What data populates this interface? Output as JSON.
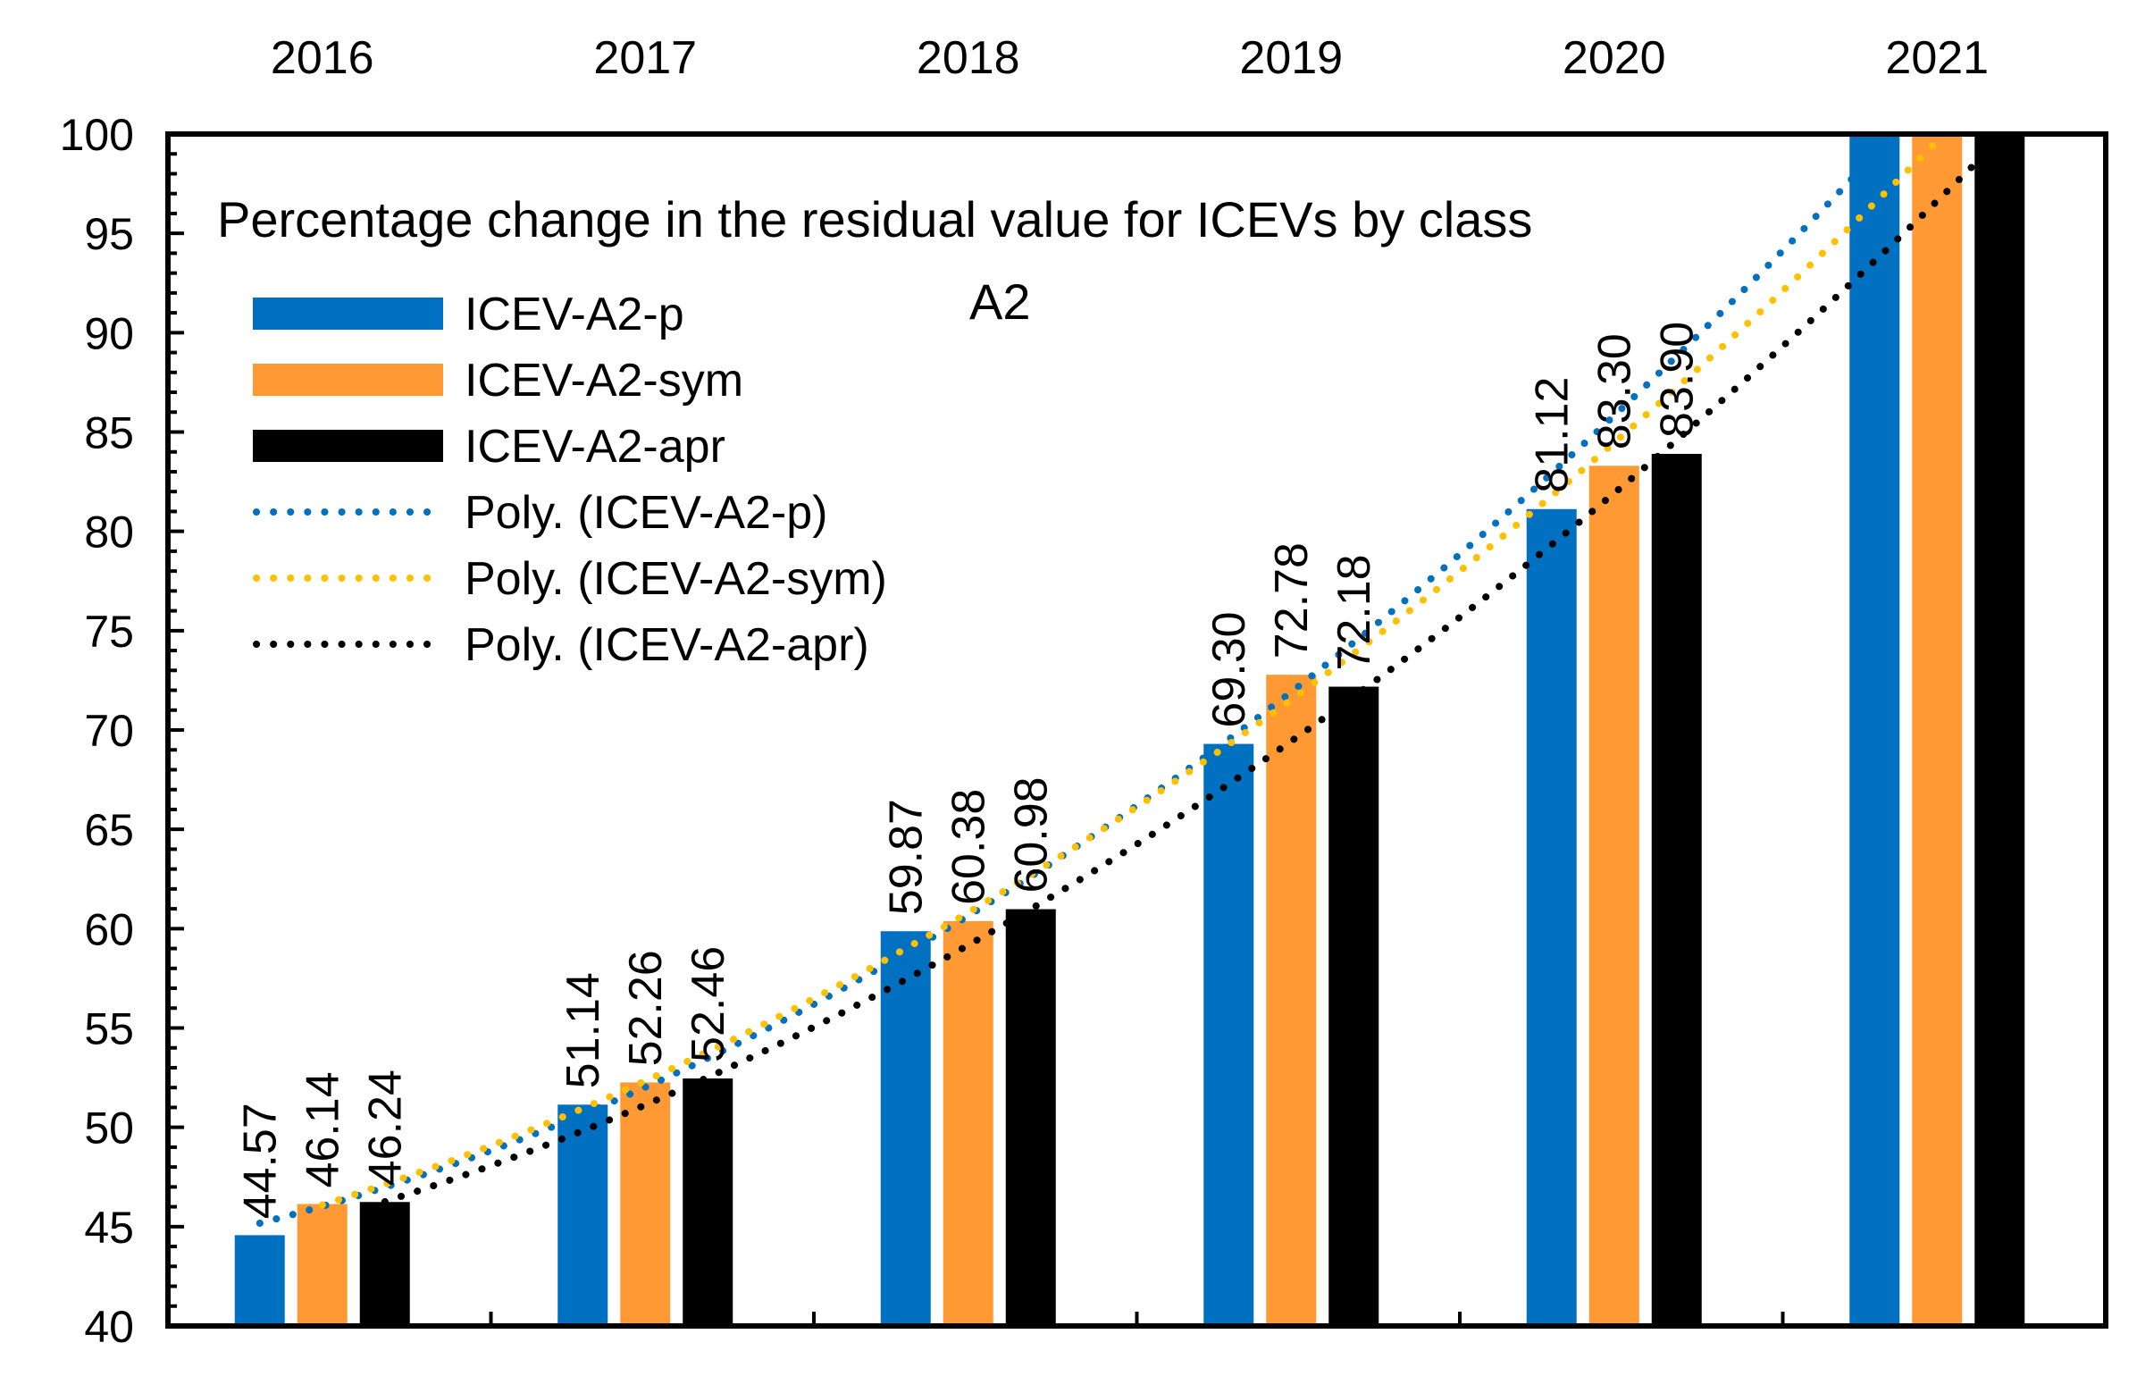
{
  "chart_data": {
    "type": "bar",
    "title": "Percentage change in the residual value for ICEVs by class",
    "subtitle": "A2",
    "categories": [
      "2016",
      "2017",
      "2018",
      "2019",
      "2020",
      "2021"
    ],
    "ylim": [
      40,
      100
    ],
    "yticks": [
      "40",
      "45",
      "50",
      "55",
      "60",
      "65",
      "70",
      "75",
      "80",
      "85",
      "90",
      "95",
      "100"
    ],
    "xlabel": "",
    "ylabel": "",
    "legend_position": "top-left",
    "series": [
      {
        "name": "ICEV-A2-p",
        "color": "#0070C0",
        "values": [
          44.57,
          51.14,
          59.87,
          69.3,
          81.12,
          100
        ],
        "labels": [
          "44.57",
          "51.14",
          "59.87",
          "69.30",
          "81.12",
          ""
        ]
      },
      {
        "name": "ICEV-A2-sym",
        "color": "#FF9933",
        "values": [
          46.14,
          52.26,
          60.38,
          72.78,
          83.3,
          100
        ],
        "labels": [
          "46.14",
          "52.26",
          "60.38",
          "72.78",
          "83.30",
          ""
        ]
      },
      {
        "name": "ICEV-A2-apr",
        "color": "#000000",
        "values": [
          46.24,
          52.46,
          60.98,
          72.18,
          83.9,
          100
        ],
        "labels": [
          "46.24",
          "52.46",
          "60.98",
          "72.18",
          "83.90",
          ""
        ]
      }
    ],
    "trendlines": [
      {
        "name": "Poly. (ICEV-A2-p)",
        "color": "#0070C0",
        "of_series": 0
      },
      {
        "name": "Poly. (ICEV-A2-sym)",
        "color": "#FFC000",
        "of_series": 1
      },
      {
        "name": "Poly. (ICEV-A2-apr)",
        "color": "#000000",
        "of_series": 2
      }
    ]
  }
}
